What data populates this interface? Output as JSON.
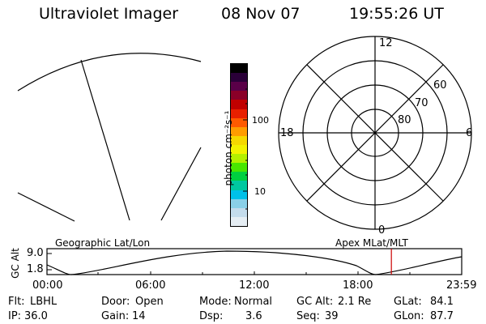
{
  "header": {
    "instrument": "Ultraviolet Imager",
    "date": "08 Nov 07",
    "time": "19:55:26 UT"
  },
  "colorbar": {
    "unit_label": "photon cm⁻²s⁻¹",
    "tick_labels": [
      "100",
      "10"
    ],
    "colors": [
      "#000000",
      "#2a0038",
      "#5a0048",
      "#8a0028",
      "#c00000",
      "#e82000",
      "#ff5a00",
      "#ff9c00",
      "#f5d800",
      "#f2f200",
      "#b4f000",
      "#48e600",
      "#00d040",
      "#00c8a0",
      "#00c0e8",
      "#8ad0e8",
      "#c4dcec",
      "#e6eef4"
    ]
  },
  "polar_plot": {
    "mlt_labels": [
      "12",
      "18",
      "6",
      "0"
    ],
    "lat_labels": [
      "60",
      "70",
      "80"
    ]
  },
  "orbit_plot": {
    "left_label": "Geographic Lat/Lon",
    "right_label": "Apex MLat/MLT",
    "y_axis_label": "GC Alt",
    "y_ticks": [
      "9.0",
      "1.8"
    ],
    "x_ticks": [
      "00:00",
      "06:00",
      "12:00",
      "18:00",
      "23:59"
    ],
    "current_time_marker": "19:55",
    "marker_color": "#cc0000"
  },
  "status": {
    "row1": [
      {
        "label": "Flt:",
        "value": "LBHL"
      },
      {
        "label": "Door:",
        "value": "Open"
      },
      {
        "label": "Mode:",
        "value": "Normal"
      },
      {
        "label": "GC Alt:",
        "value": "2.1 Re"
      },
      {
        "label": "GLat:",
        "value": "84.1"
      }
    ],
    "row2": [
      {
        "label": "IP:",
        "value": "36.0"
      },
      {
        "label": "Gain:",
        "value": "14"
      },
      {
        "label": "Dsp:",
        "value": "3.6"
      },
      {
        "label": "Seq:",
        "value": "39"
      },
      {
        "label": "GLon:",
        "value": "87.7"
      }
    ]
  }
}
